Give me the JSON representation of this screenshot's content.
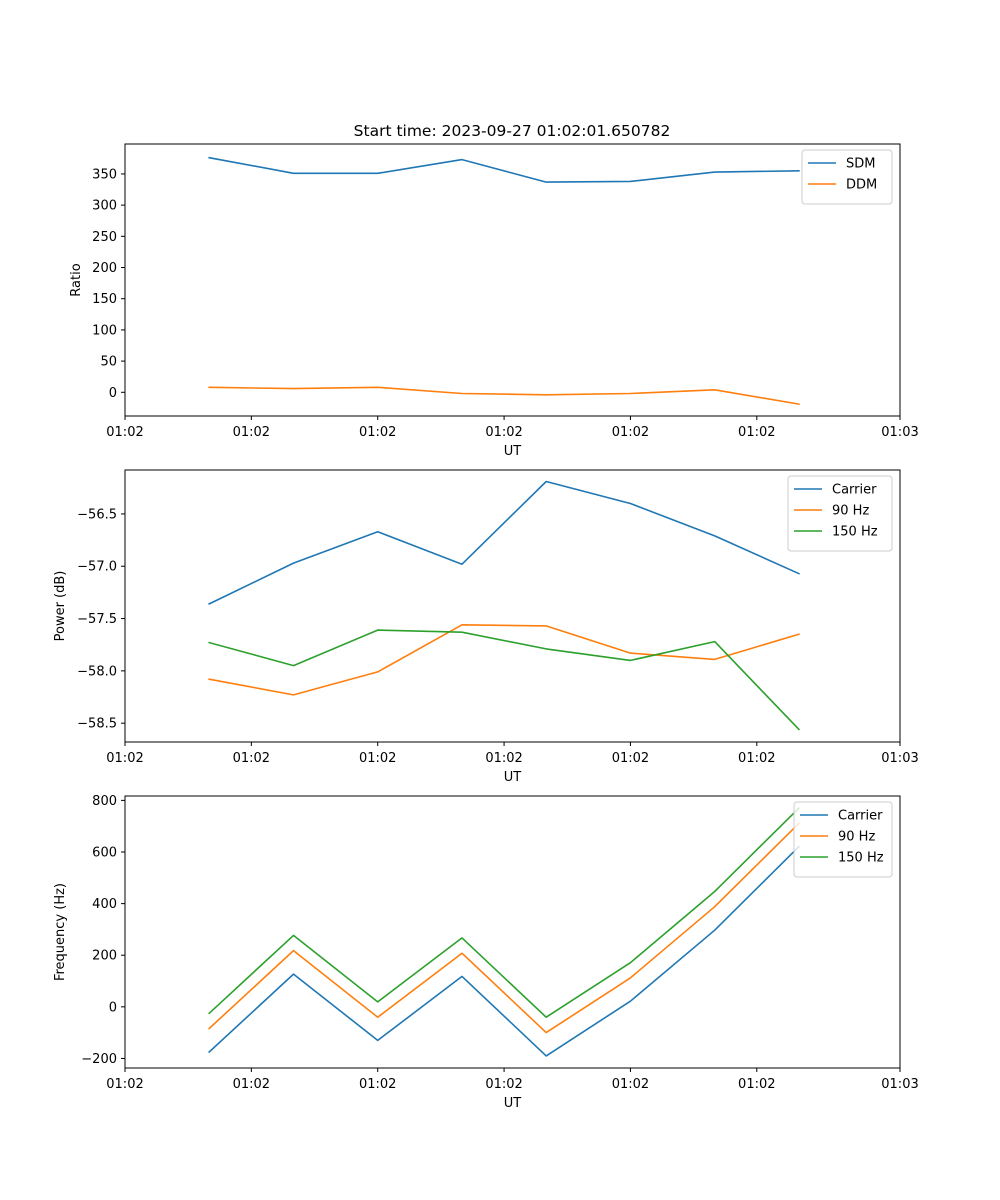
{
  "figure": {
    "title": "Start time: 2023-09-27 01:02:01.650782"
  },
  "chart_data": [
    {
      "type": "line",
      "title": "Start time: 2023-09-27 01:02:01.650782",
      "xlabel": "UT",
      "ylabel": "Ratio",
      "x": [
        1,
        2,
        3,
        4,
        5,
        6,
        7,
        8
      ],
      "xlim": [
        0,
        9.2
      ],
      "xticks": [
        0,
        1.5,
        3,
        4.5,
        6,
        7.5,
        9.2
      ],
      "xtick_labels": [
        "01:02",
        "01:02",
        "01:02",
        "01:02",
        "01:02",
        "01:02",
        "01:03"
      ],
      "ylim": [
        -38,
        398
      ],
      "yticks": [
        0,
        50,
        100,
        150,
        200,
        250,
        300,
        350
      ],
      "ytick_labels": [
        "0",
        "50",
        "100",
        "150",
        "200",
        "250",
        "300",
        "350"
      ],
      "legend": "top-right",
      "grid": false,
      "series": [
        {
          "name": "SDM",
          "color": "#1f77b4",
          "values": [
            376,
            351,
            351,
            373,
            337,
            338,
            353,
            355
          ]
        },
        {
          "name": "DDM",
          "color": "#ff7f0e",
          "values": [
            8,
            6,
            8,
            -2,
            -4,
            -2,
            4,
            -19
          ]
        }
      ]
    },
    {
      "type": "line",
      "title": "",
      "xlabel": "UT",
      "ylabel": "Power (dB)",
      "x": [
        1,
        2,
        3,
        4,
        5,
        6,
        7,
        8
      ],
      "xlim": [
        0,
        9.2
      ],
      "xticks": [
        0,
        1.5,
        3,
        4.5,
        6,
        7.5,
        9.2
      ],
      "xtick_labels": [
        "01:02",
        "01:02",
        "01:02",
        "01:02",
        "01:02",
        "01:02",
        "01:03"
      ],
      "ylim": [
        -58.68,
        -56.08
      ],
      "yticks": [
        -58.5,
        -58.0,
        -57.5,
        -57.0,
        -56.5
      ],
      "ytick_labels": [
        "−58.5",
        "−58.0",
        "−57.5",
        "−57.0",
        "−56.5"
      ],
      "legend": "top-right",
      "grid": false,
      "series": [
        {
          "name": "Carrier",
          "color": "#1f77b4",
          "values": [
            -57.36,
            -56.97,
            -56.67,
            -56.98,
            -56.19,
            -56.4,
            -56.71,
            -57.07
          ]
        },
        {
          "name": "90 Hz",
          "color": "#ff7f0e",
          "values": [
            -58.08,
            -58.23,
            -58.01,
            -57.56,
            -57.57,
            -57.83,
            -57.89,
            -57.65
          ]
        },
        {
          "name": "150 Hz",
          "color": "#2ca02c",
          "values": [
            -57.73,
            -57.95,
            -57.61,
            -57.63,
            -57.79,
            -57.9,
            -57.72,
            -58.56
          ]
        }
      ]
    },
    {
      "type": "line",
      "title": "",
      "xlabel": "UT",
      "ylabel": "Frequency (Hz)",
      "x": [
        1,
        2,
        3,
        4,
        5,
        6,
        7,
        8
      ],
      "xlim": [
        0,
        9.2
      ],
      "xticks": [
        0,
        1.5,
        3,
        4.5,
        6,
        7.5,
        9.2
      ],
      "xtick_labels": [
        "01:02",
        "01:02",
        "01:02",
        "01:02",
        "01:02",
        "01:02",
        "01:03"
      ],
      "ylim": [
        -237,
        817
      ],
      "yticks": [
        -200,
        0,
        200,
        400,
        600,
        800
      ],
      "ytick_labels": [
        "−200",
        "0",
        "200",
        "400",
        "600",
        "800"
      ],
      "legend": "top-right",
      "grid": false,
      "series": [
        {
          "name": "Carrier",
          "color": "#1f77b4",
          "values": [
            -175,
            127,
            -130,
            118,
            -190,
            22,
            297,
            621
          ]
        },
        {
          "name": "90 Hz",
          "color": "#ff7f0e",
          "values": [
            -84,
            218,
            -40,
            208,
            -100,
            112,
            388,
            711
          ]
        },
        {
          "name": "150 Hz",
          "color": "#2ca02c",
          "values": [
            -25,
            277,
            19,
            267,
            -40,
            171,
            447,
            770
          ]
        }
      ]
    }
  ]
}
